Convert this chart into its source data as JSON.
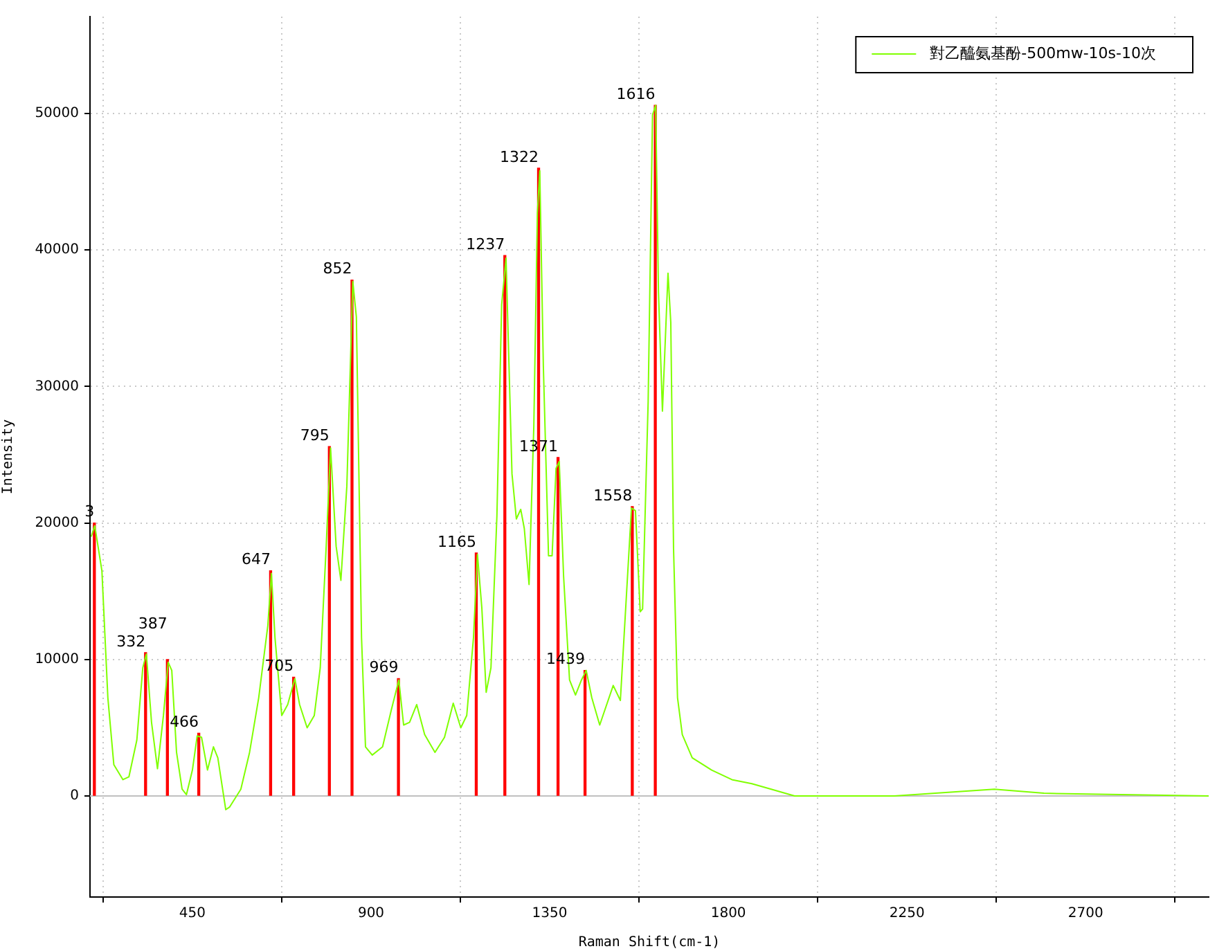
{
  "chart_data": {
    "type": "line",
    "xlabel": "Raman Shift(cm-1)",
    "ylabel": "Intensity",
    "xlim": [
      192,
      3010
    ],
    "ylim": [
      -7400,
      57100
    ],
    "xticks": [
      450,
      900,
      1350,
      1800,
      2250,
      2700
    ],
    "yticks": [
      0,
      10000,
      20000,
      30000,
      40000,
      50000
    ],
    "grid": true,
    "legend": "top right",
    "ref_lines": [
      {
        "axis": "y",
        "value": 0,
        "color": "#c0c0c0"
      }
    ],
    "series": [
      {
        "name": "對乙醯氨基酚-500mw-10s-10次",
        "color": "#80ff00",
        "x": [
          195,
          204,
          222,
          237,
          252,
          275,
          290,
          310,
          325,
          334,
          347,
          362,
          377,
          389,
          398,
          410,
          424,
          435,
          450,
          462,
          473,
          488,
          503,
          514,
          534,
          544,
          572,
          594,
          617,
          640,
          649,
          658,
          675,
          690,
          708,
          720,
          739,
          757,
          772,
          787,
          798,
          812,
          824,
          839,
          854,
          863,
          876,
          886,
          903,
          929,
          951,
          970,
          982,
          997,
          1015,
          1035,
          1061,
          1085,
          1107,
          1126,
          1141,
          1158,
          1168,
          1179,
          1190,
          1202,
          1217,
          1229,
          1240,
          1255,
          1266,
          1277,
          1286,
          1298,
          1310,
          1319,
          1325,
          1334,
          1347,
          1356,
          1366,
          1374,
          1385,
          1400,
          1415,
          1430,
          1442,
          1456,
          1476,
          1510,
          1528,
          1556,
          1566,
          1578,
          1584,
          1598,
          1609,
          1617,
          1624,
          1634,
          1648,
          1655,
          1662,
          1672,
          1684,
          1709,
          1758,
          1809,
          1859,
          1908,
          1967,
          2218,
          2470,
          2595,
          3010
        ],
        "values": [
          19000,
          19800,
          16500,
          7200,
          2300,
          1200,
          1400,
          4100,
          9400,
          10400,
          5400,
          2000,
          5900,
          9800,
          9200,
          3200,
          500,
          100,
          1900,
          4400,
          4300,
          1900,
          3600,
          2800,
          -1000,
          -800,
          500,
          3200,
          7200,
          12500,
          16300,
          11600,
          5900,
          6700,
          8600,
          6700,
          5000,
          5900,
          9400,
          18300,
          25500,
          18300,
          15800,
          22700,
          37700,
          35100,
          11600,
          3600,
          3000,
          3600,
          6300,
          8500,
          5200,
          5400,
          6700,
          4500,
          3200,
          4300,
          6800,
          5000,
          5900,
          11600,
          17700,
          13800,
          7600,
          9400,
          20500,
          36000,
          39400,
          23600,
          20300,
          21000,
          19600,
          15500,
          27100,
          42700,
          45800,
          31500,
          17600,
          17600,
          24000,
          24500,
          16100,
          8500,
          7400,
          8500,
          9200,
          7200,
          5200,
          8100,
          7000,
          21100,
          20900,
          13500,
          13700,
          28900,
          49900,
          50600,
          36900,
          28200,
          38300,
          34700,
          18100,
          7200,
          4500,
          2800,
          1900,
          1200,
          900,
          500,
          0,
          0,
          500,
          200,
          0
        ]
      },
      {
        "type": "bar",
        "color": "#ff0000",
        "x": [
          203,
          332,
          387,
          466,
          647,
          705,
          795,
          852,
          969,
          1165,
          1237,
          1322,
          1371,
          1439,
          1558,
          1616
        ],
        "values": [
          20000,
          10500,
          10000,
          4600,
          16500,
          8700,
          25600,
          37800,
          8600,
          17800,
          39600,
          46000,
          24800,
          9200,
          21200,
          50600
        ]
      }
    ],
    "annotations": [
      {
        "text": "3",
        "x": 203,
        "y": 20000
      },
      {
        "text": "332",
        "x": 332,
        "y": 10500
      },
      {
        "text": "387",
        "x": 387,
        "y": 10000
      },
      {
        "text": "466",
        "x": 466,
        "y": 4600
      },
      {
        "text": "647",
        "x": 647,
        "y": 16500
      },
      {
        "text": "705",
        "x": 705,
        "y": 8700
      },
      {
        "text": "795",
        "x": 795,
        "y": 25600
      },
      {
        "text": "852",
        "x": 852,
        "y": 37800
      },
      {
        "text": "969",
        "x": 969,
        "y": 8600
      },
      {
        "text": "1165",
        "x": 1165,
        "y": 17800
      },
      {
        "text": "1237",
        "x": 1237,
        "y": 39600
      },
      {
        "text": "1322",
        "x": 1322,
        "y": 46000
      },
      {
        "text": "1371",
        "x": 1371,
        "y": 24800
      },
      {
        "text": "1439",
        "x": 1439,
        "y": 9200
      },
      {
        "text": "1558",
        "x": 1558,
        "y": 21200
      },
      {
        "text": "1616",
        "x": 1616,
        "y": 50600
      }
    ]
  }
}
